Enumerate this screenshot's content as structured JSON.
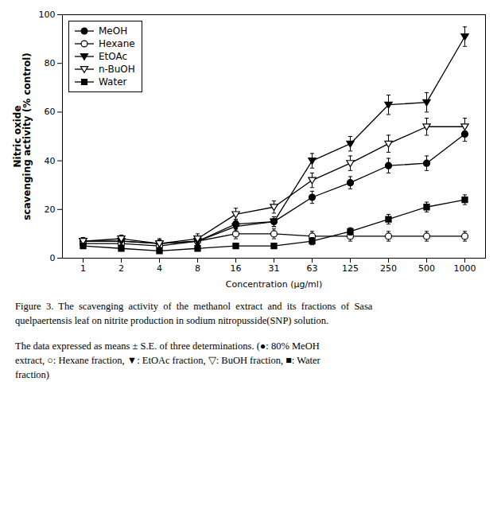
{
  "chart_data": {
    "type": "line",
    "xlabel": "Concentration (μg/ml)",
    "ylabel": "Nitric oxide\nscavenging activity (% control)",
    "categories": [
      "1",
      "2",
      "4",
      "8",
      "16",
      "31",
      "63",
      "125",
      "250",
      "500",
      "1000"
    ],
    "series": [
      {
        "name": "MeOH",
        "color": "black",
        "marker": "circle",
        "values": [
          7,
          7,
          6,
          7,
          14,
          15,
          25,
          31,
          38,
          39,
          51
        ],
        "yerr": [
          1.5,
          1.5,
          1.5,
          1.5,
          2,
          2,
          2.5,
          2.5,
          3,
          3,
          3
        ]
      },
      {
        "name": "Hexane",
        "color": "black",
        "marker": "circle-open",
        "values": [
          6,
          6,
          5,
          7,
          10,
          10,
          9,
          9,
          9,
          9,
          9
        ],
        "yerr": [
          1.5,
          1.5,
          1.5,
          1.5,
          2,
          2,
          2,
          2,
          2,
          2,
          2
        ]
      },
      {
        "name": "EtOAc",
        "color": "black",
        "marker": "triangle-down",
        "values": [
          7,
          7,
          6,
          7,
          13,
          15,
          40,
          47,
          63,
          64,
          91
        ],
        "yerr": [
          1.5,
          1.5,
          1.5,
          1.5,
          2,
          2,
          3,
          3,
          4,
          4,
          4
        ]
      },
      {
        "name": "n-BuOH",
        "color": "black",
        "marker": "triangle-down-open",
        "values": [
          7,
          8,
          6,
          8,
          18,
          21,
          32,
          39,
          47,
          54,
          54
        ],
        "yerr": [
          1.5,
          1.5,
          2,
          2,
          2.5,
          2.5,
          3,
          3,
          3.5,
          3.5,
          3.5
        ]
      },
      {
        "name": "Water",
        "color": "black",
        "marker": "square",
        "values": [
          5,
          4,
          3,
          4,
          5,
          5,
          7,
          11,
          16,
          21,
          24
        ],
        "yerr": [
          1,
          1,
          1,
          1,
          1,
          1,
          1.5,
          1.5,
          2,
          2,
          2
        ]
      }
    ],
    "ylim": [
      0,
      100
    ],
    "yticks": [
      0,
      20,
      40,
      60,
      80,
      100
    ],
    "grid": false,
    "legend": "upper left",
    "annotations": [
      "Figure  3.  The  scavenging  activity  of  the  methanol  extract  and  its  fractions  of  Sasa",
      "quelpaertensis leaf on nitrite production in sodium nitropusside(SNP) solution.",
      "The data expressed as means ± S.E. of three determinations. (●: 80% MeOH",
      "extract, ○: Hexane fraction, ▼: EtOAc fraction, ▽: BuOH fraction, ■: Water",
      "fraction)"
    ]
  }
}
